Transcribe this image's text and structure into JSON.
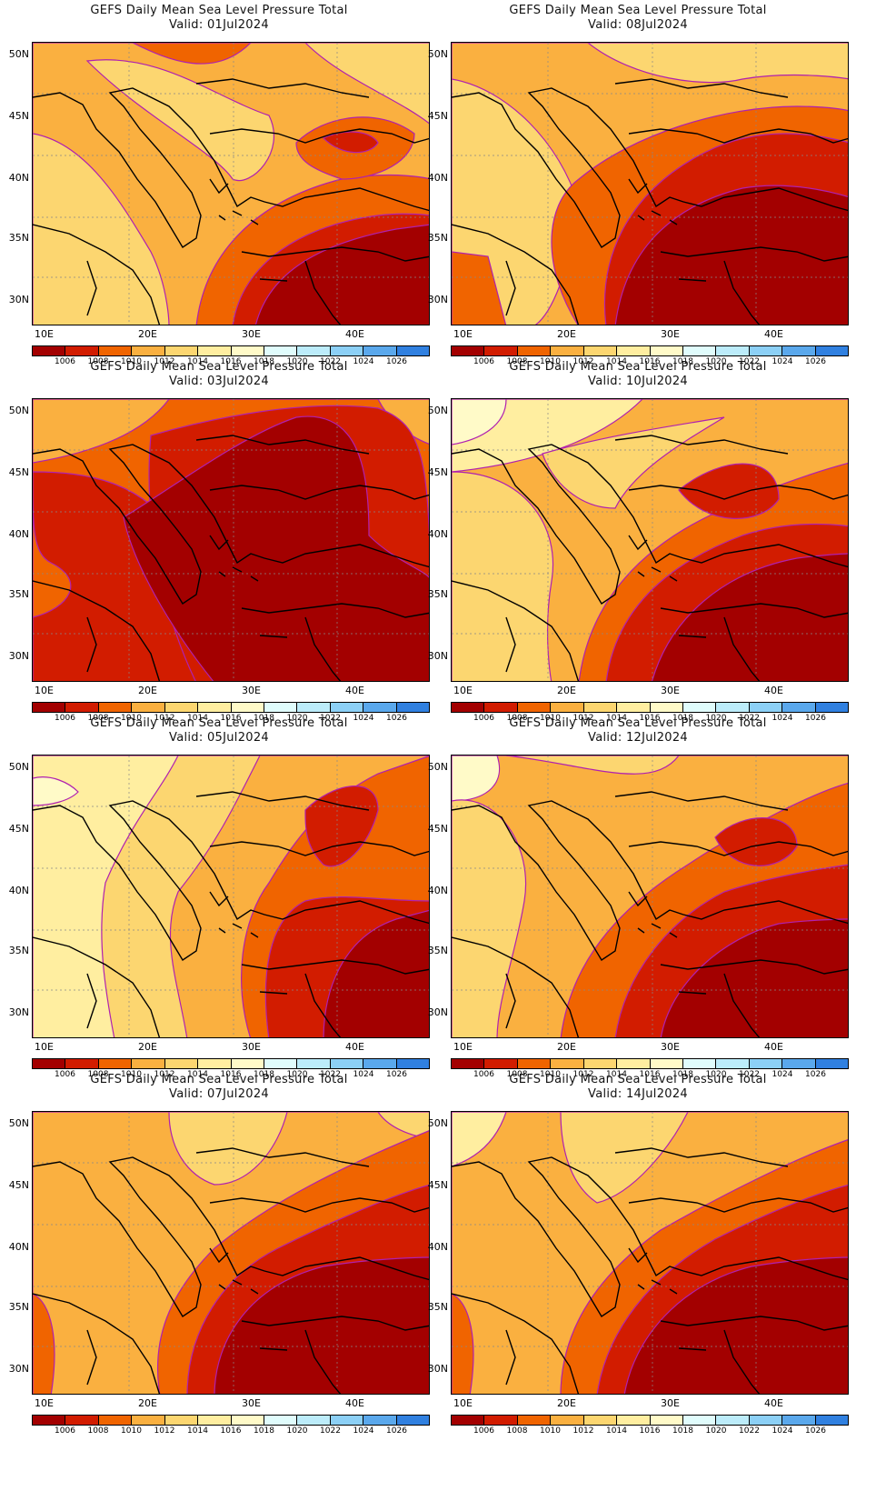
{
  "title": "GEFS Daily Mean Sea Level Pressure Total",
  "valid_prefix": "Valid:",
  "panels": [
    {
      "date": "01Jul2024"
    },
    {
      "date": "08Jul2024"
    },
    {
      "date": "03Jul2024"
    },
    {
      "date": "10Jul2024"
    },
    {
      "date": "05Jul2024"
    },
    {
      "date": "12Jul2024"
    },
    {
      "date": "07Jul2024"
    },
    {
      "date": "14Jul2024"
    }
  ],
  "lat_labels": [
    "50N",
    "45N",
    "40N",
    "35N",
    "30N"
  ],
  "lon_labels": [
    "10E",
    "20E",
    "30E",
    "40E"
  ],
  "colorbar": {
    "labels": [
      "1006",
      "1008",
      "1010",
      "1012",
      "1014",
      "1016",
      "1018",
      "1020",
      "1022",
      "1024",
      "1026"
    ],
    "colors": [
      "#a30000",
      "#d21c00",
      "#f06400",
      "#fab040",
      "#fcd670",
      "#ffeea0",
      "#fffac8",
      "#e0fcfc",
      "#bcecfa",
      "#8cd0f6",
      "#5aa8ec",
      "#3080e0"
    ]
  },
  "contour_color": "#b020b0"
}
